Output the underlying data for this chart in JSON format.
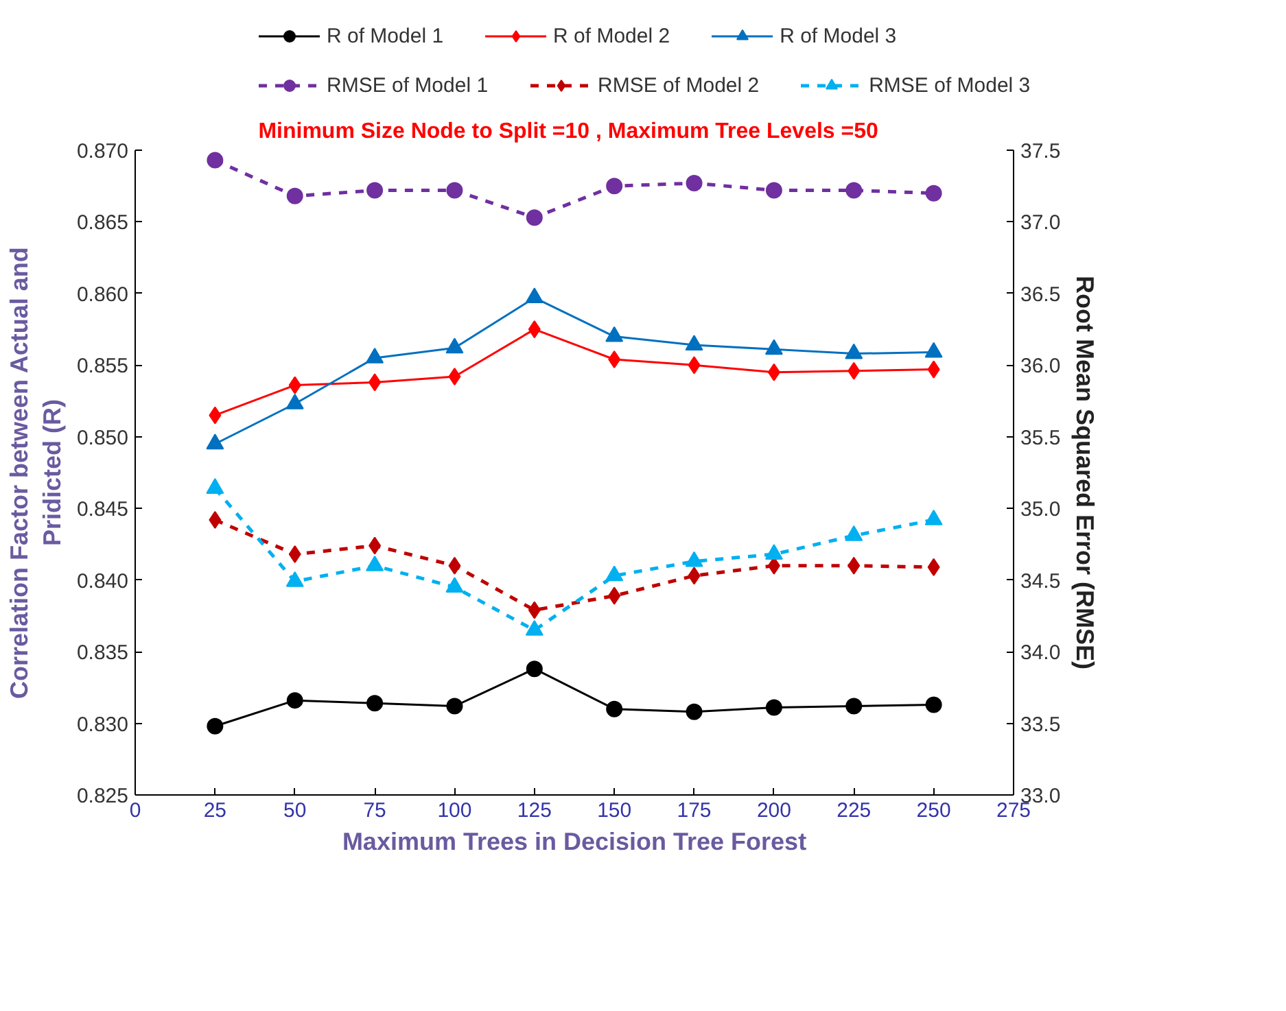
{
  "chart_data": {
    "type": "line",
    "title": "Minimum Size Node to  Split =10 ,  Maximum Tree Levels =50",
    "xlabel": "Maximum Trees in Decision Tree Forest",
    "ylabel": "Correlation Factor between Actual and\nPridicted (R)",
    "y2label": "Root Mean Squared Error (RMSE)",
    "x": [
      25,
      50,
      75,
      100,
      125,
      150,
      175,
      200,
      225,
      250
    ],
    "xlim": [
      0,
      275
    ],
    "xticks": [
      0,
      25,
      50,
      75,
      100,
      125,
      150,
      175,
      200,
      225,
      250,
      275
    ],
    "ylim": [
      0.825,
      0.87
    ],
    "yticks": [
      {
        "value": 0.825,
        "label": "0.825"
      },
      {
        "value": 0.83,
        "label": "0.830"
      },
      {
        "value": 0.835,
        "label": "0.835"
      },
      {
        "value": 0.84,
        "label": "0.840"
      },
      {
        "value": 0.845,
        "label": "0.845"
      },
      {
        "value": 0.85,
        "label": "0.850"
      },
      {
        "value": 0.855,
        "label": "0.855"
      },
      {
        "value": 0.86,
        "label": "0.860"
      },
      {
        "value": 0.865,
        "label": "0.865"
      },
      {
        "value": 0.87,
        "label": "0.870"
      }
    ],
    "y2lim": [
      33.0,
      37.5
    ],
    "y2ticks": [
      {
        "value": 33,
        "label": "33.0"
      },
      {
        "value": 33.5,
        "label": "33.5"
      },
      {
        "value": 34,
        "label": "34.0"
      },
      {
        "value": 34.5,
        "label": "34.5"
      },
      {
        "value": 35,
        "label": "35.0"
      },
      {
        "value": 35.5,
        "label": "35.5"
      },
      {
        "value": 36,
        "label": "36.0"
      },
      {
        "value": 36.5,
        "label": "36.5"
      },
      {
        "value": 37,
        "label": "37.0"
      },
      {
        "value": 37.5,
        "label": "37.5"
      }
    ],
    "legend": "top",
    "grid": false,
    "series": [
      {
        "name": "R of Model 1",
        "color": "#000000",
        "marker": "circle",
        "line_style": "solid",
        "values": [
          0.8298,
          0.8316,
          0.8314,
          0.8312,
          0.8338,
          0.831,
          0.8308,
          0.8311,
          0.8312,
          0.8313
        ]
      },
      {
        "name": "R of Model 2",
        "color": "#ff0000",
        "marker": "diamond",
        "line_style": "solid",
        "values": [
          0.8515,
          0.8536,
          0.8538,
          0.8542,
          0.8575,
          0.8554,
          0.855,
          0.8545,
          0.8546,
          0.8547
        ]
      },
      {
        "name": "R of Model 3",
        "color": "#0070c0",
        "marker": "triangle",
        "line_style": "solid",
        "values": [
          0.8495,
          0.8523,
          0.8555,
          0.8562,
          0.8597,
          0.857,
          0.8564,
          0.8561,
          0.8558,
          0.8559
        ]
      },
      {
        "name": "RMSE of Model 1",
        "color": "#7030a0",
        "marker": "circle",
        "line_style": "dashed",
        "axis": "y2",
        "values": [
          37.43,
          37.18,
          37.22,
          37.22,
          37.03,
          37.25,
          37.27,
          37.22,
          37.22,
          37.2
        ]
      },
      {
        "name": "RMSE of Model 2",
        "color": "#c00000",
        "marker": "diamond",
        "line_style": "dashed",
        "axis": "y2",
        "values": [
          34.92,
          34.68,
          34.74,
          34.6,
          34.29,
          34.39,
          34.53,
          34.6,
          34.6,
          34.59
        ]
      },
      {
        "name": "RMSE of Model 3",
        "color": "#00b0f0",
        "marker": "triangle",
        "line_style": "dashed",
        "axis": "y2",
        "values": [
          35.14,
          34.49,
          34.6,
          34.45,
          34.15,
          34.53,
          34.63,
          34.68,
          34.81,
          34.92
        ]
      }
    ]
  }
}
